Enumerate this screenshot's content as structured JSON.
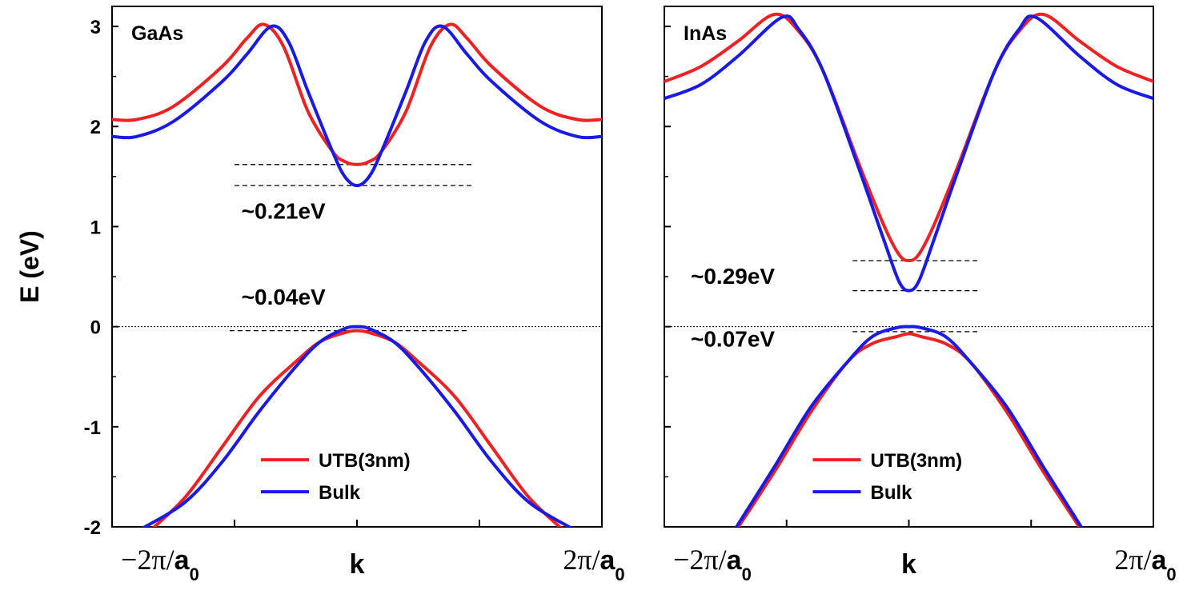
{
  "chart_data": [
    {
      "type": "line",
      "panel_label": "GaAs",
      "ylabel": "E (eV)",
      "ylim": [
        -2,
        3.2
      ],
      "y_ticks": [
        "3",
        "2",
        "1",
        "0",
        "-1",
        "-2"
      ],
      "xlabel": "k",
      "x_range": [
        -1,
        1
      ],
      "x_tick_left": {
        "prefix": "−2π/",
        "var": "a",
        "sub": "0"
      },
      "x_tick_right": {
        "prefix": "2π/",
        "var": "a",
        "sub": "0"
      },
      "legend": {
        "placement": "lower-center",
        "entries": [
          "UTB(3nm)",
          "Bulk"
        ]
      },
      "series": [
        {
          "name": "UTB(3nm)",
          "color": "#ee2222",
          "band": "conduction",
          "x": [
            -1,
            -0.9,
            -0.75,
            -0.55,
            -0.45,
            -0.38,
            -0.3,
            -0.2,
            -0.1,
            -0.05,
            0,
            0.05,
            0.1,
            0.2,
            0.3,
            0.38,
            0.45,
            0.55,
            0.75,
            0.9,
            1
          ],
          "y": [
            2.07,
            2.07,
            2.2,
            2.6,
            2.88,
            3.02,
            2.8,
            2.15,
            1.75,
            1.65,
            1.62,
            1.65,
            1.75,
            2.15,
            2.8,
            3.02,
            2.88,
            2.6,
            2.2,
            2.07,
            2.07
          ]
        },
        {
          "name": "Bulk",
          "color": "#1a1ae6",
          "band": "conduction",
          "x": [
            -1,
            -0.9,
            -0.75,
            -0.55,
            -0.45,
            -0.35,
            -0.28,
            -0.2,
            -0.1,
            -0.05,
            0,
            0.05,
            0.1,
            0.2,
            0.28,
            0.35,
            0.45,
            0.55,
            0.75,
            0.9,
            1
          ],
          "y": [
            1.9,
            1.9,
            2.05,
            2.45,
            2.72,
            3.0,
            2.85,
            2.35,
            1.75,
            1.5,
            1.41,
            1.5,
            1.75,
            2.35,
            2.85,
            3.0,
            2.72,
            2.45,
            2.05,
            1.9,
            1.9
          ]
        },
        {
          "name": "UTB(3nm)",
          "color": "#ee2222",
          "band": "valence",
          "x": [
            -0.85,
            -0.7,
            -0.55,
            -0.4,
            -0.25,
            -0.15,
            -0.05,
            0,
            0.05,
            0.15,
            0.25,
            0.4,
            0.55,
            0.7,
            0.85
          ],
          "y": [
            -2.05,
            -1.7,
            -1.2,
            -0.7,
            -0.35,
            -0.15,
            -0.06,
            -0.04,
            -0.06,
            -0.15,
            -0.35,
            -0.7,
            -1.2,
            -1.7,
            -2.05
          ]
        },
        {
          "name": "Bulk",
          "color": "#1a1ae6",
          "band": "valence",
          "x": [
            -0.88,
            -0.7,
            -0.55,
            -0.4,
            -0.25,
            -0.15,
            -0.05,
            0,
            0.05,
            0.15,
            0.25,
            0.4,
            0.55,
            0.7,
            0.88
          ],
          "y": [
            -2.02,
            -1.75,
            -1.35,
            -0.85,
            -0.4,
            -0.15,
            -0.02,
            0,
            -0.02,
            -0.15,
            -0.4,
            -0.85,
            -1.35,
            -1.75,
            -2.02
          ]
        }
      ],
      "annotations": [
        {
          "text": "~0.21eV",
          "x": -0.3,
          "y": 1.08
        },
        {
          "text": "~0.04eV",
          "x": -0.3,
          "y": 0.22
        }
      ],
      "guides": [
        {
          "y": 1.62,
          "x0": -0.5,
          "x1": 0.48
        },
        {
          "y": 1.41,
          "x0": -0.5,
          "x1": 0.48
        },
        {
          "y": -0.04,
          "x0": -0.52,
          "x1": 0.45
        }
      ]
    },
    {
      "type": "line",
      "panel_label": "InAs",
      "ylim": [
        -2,
        3.2
      ],
      "xlabel": "k",
      "x_range": [
        -1,
        1
      ],
      "x_tick_left": {
        "prefix": "−2π/",
        "var": "a",
        "sub": "0"
      },
      "x_tick_right": {
        "prefix": "2π/",
        "var": "a",
        "sub": "0"
      },
      "legend": {
        "placement": "lower-center",
        "entries": [
          "UTB(3nm)",
          "Bulk"
        ]
      },
      "series": [
        {
          "name": "UTB(3nm)",
          "color": "#ee2222",
          "band": "conduction",
          "x": [
            -1,
            -0.85,
            -0.7,
            -0.55,
            -0.45,
            -0.35,
            -0.2,
            -0.1,
            -0.04,
            0,
            0.04,
            0.1,
            0.2,
            0.35,
            0.45,
            0.55,
            0.7,
            0.85,
            1
          ],
          "y": [
            2.45,
            2.6,
            2.85,
            3.12,
            2.95,
            2.55,
            1.6,
            1.0,
            0.72,
            0.66,
            0.72,
            1.0,
            1.6,
            2.55,
            2.95,
            3.12,
            2.85,
            2.6,
            2.45
          ]
        },
        {
          "name": "Bulk",
          "color": "#1a1ae6",
          "band": "conduction",
          "x": [
            -1,
            -0.85,
            -0.7,
            -0.52,
            -0.45,
            -0.35,
            -0.2,
            -0.1,
            -0.04,
            0,
            0.04,
            0.1,
            0.2,
            0.35,
            0.45,
            0.52,
            0.7,
            0.85,
            1
          ],
          "y": [
            2.28,
            2.42,
            2.7,
            3.09,
            2.97,
            2.55,
            1.55,
            0.85,
            0.45,
            0.36,
            0.45,
            0.85,
            1.55,
            2.55,
            2.97,
            3.09,
            2.7,
            2.42,
            2.28
          ]
        },
        {
          "name": "UTB(3nm)",
          "color": "#ee2222",
          "band": "valence",
          "x": [
            -0.71,
            -0.55,
            -0.4,
            -0.25,
            -0.15,
            -0.05,
            0,
            0.05,
            0.15,
            0.25,
            0.4,
            0.55,
            0.71
          ],
          "y": [
            -2.05,
            -1.45,
            -0.85,
            -0.35,
            -0.17,
            -0.1,
            -0.07,
            -0.1,
            -0.17,
            -0.35,
            -0.85,
            -1.45,
            -2.05
          ]
        },
        {
          "name": "Bulk",
          "color": "#1a1ae6",
          "band": "valence",
          "x": [
            -0.71,
            -0.55,
            -0.4,
            -0.25,
            -0.15,
            -0.05,
            0,
            0.05,
            0.15,
            0.25,
            0.4,
            0.55,
            0.71
          ],
          "y": [
            -2.02,
            -1.4,
            -0.8,
            -0.35,
            -0.1,
            -0.01,
            0,
            -0.01,
            -0.1,
            -0.35,
            -0.8,
            -1.4,
            -2.02
          ]
        }
      ],
      "annotations": [
        {
          "text": "~0.29eV",
          "x": -0.72,
          "y": 0.43
        },
        {
          "text": "~0.07eV",
          "x": -0.72,
          "y": -0.2
        }
      ],
      "guides": [
        {
          "y": 0.66,
          "x0": -0.23,
          "x1": 0.28
        },
        {
          "y": 0.36,
          "x0": -0.23,
          "x1": 0.28
        },
        {
          "y": -0.05,
          "x0": -0.23,
          "x1": 0.28
        }
      ]
    }
  ]
}
